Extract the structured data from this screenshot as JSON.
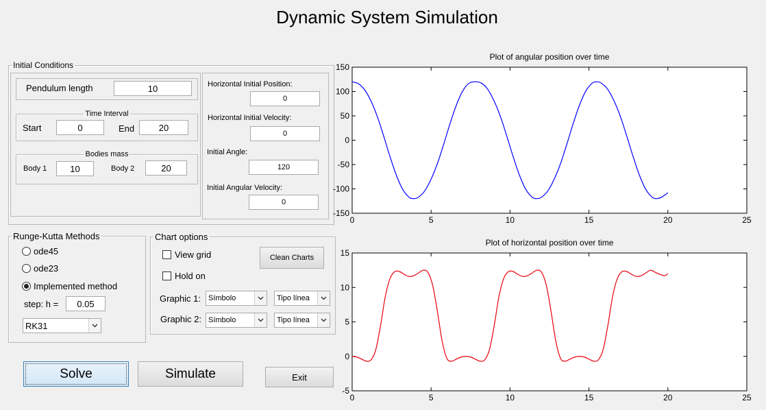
{
  "app_title": "Dynamic System Simulation",
  "initial_conditions": {
    "legend": "Initial Conditions",
    "pendulum_length_label": "Pendulum length",
    "pendulum_length": "10",
    "time_interval": {
      "legend": "Time Interval",
      "start_label": "Start",
      "start": "0",
      "end_label": "End",
      "end": "20"
    },
    "bodies_mass": {
      "legend": "Bodies mass",
      "body1_label": "Body 1",
      "body1": "10",
      "body2_label": "Body 2",
      "body2": "20"
    },
    "horiz_pos_label": "Horizontal Initial Position:",
    "horiz_pos": "0",
    "horiz_vel_label": "Horizontal Initial Velocity:",
    "horiz_vel": "0",
    "angle_label": "Initial Angle:",
    "angle": "120",
    "ang_vel_label": "Initial Angular Velocity:",
    "ang_vel": "0"
  },
  "runge_kutta": {
    "legend": "Runge-Kutta Methods",
    "options": [
      "ode45",
      "ode23",
      "Implemented method"
    ],
    "selected_index": 2,
    "step_label": "step: h =",
    "step": "0.05",
    "method_selected": "RK31"
  },
  "chart_options": {
    "legend": "Chart options",
    "view_grid_label": "View grid",
    "view_grid": false,
    "hold_on_label": "Hold on",
    "hold_on": false,
    "clean_label": "Clean Charts",
    "graphic1_label": "Graphic 1:",
    "graphic2_label": "Graphic 2:",
    "symbol_selected": "Símbolo",
    "line_type_selected": "Tipo línea"
  },
  "buttons": {
    "solve": "Solve",
    "simulate": "Simulate",
    "exit": "Exit"
  },
  "icons": {
    "dropdown_arrow": "chevron-down-icon"
  },
  "colors": {
    "series_angular": "#0000ff",
    "series_horizontal": "#e8000b"
  },
  "chart_data": [
    {
      "type": "line",
      "title": "Plot of angular position over time",
      "xlim": [
        0,
        25
      ],
      "ylim": [
        -150,
        150
      ],
      "xticks": [
        0,
        5,
        10,
        15,
        20,
        25
      ],
      "yticks": [
        150,
        100,
        50,
        0,
        -50,
        -100,
        -150
      ],
      "ytick_labels": [
        "150",
        "100",
        "50",
        "0",
        "-50",
        "-100",
        "-150"
      ],
      "grid": false,
      "series": [
        {
          "color": "#0000ff",
          "x": [
            0,
            0.4,
            0.8,
            1.2,
            1.6,
            2.0,
            2.4,
            2.8,
            3.2,
            3.6,
            3.9,
            4.2,
            4.6,
            5.0,
            5.4,
            5.8,
            6.2,
            6.6,
            7.0,
            7.4,
            7.8,
            8.2,
            8.6,
            9.0,
            9.4,
            9.8,
            10.2,
            10.6,
            11.0,
            11.4,
            11.7,
            12.0,
            12.4,
            12.8,
            13.2,
            13.6,
            14.0,
            14.4,
            14.8,
            15.2,
            15.5,
            15.8,
            16.2,
            16.6,
            17.0,
            17.4,
            17.8,
            18.2,
            18.6,
            19.0,
            19.3,
            19.6,
            20.0
          ],
          "y": [
            120,
            116,
            103,
            80,
            48,
            8,
            -34,
            -72,
            -101,
            -117,
            -120,
            -117,
            -104,
            -80,
            -48,
            -8,
            34,
            72,
            101,
            117,
            120,
            117,
            104,
            80,
            48,
            8,
            -34,
            -72,
            -101,
            -117,
            -120,
            -117,
            -104,
            -80,
            -48,
            -8,
            34,
            72,
            101,
            117,
            120,
            117,
            104,
            80,
            48,
            8,
            -34,
            -72,
            -101,
            -117,
            -120,
            -117,
            -108
          ]
        }
      ]
    },
    {
      "type": "line",
      "title": "Plot of horizontal position over time",
      "xlim": [
        0,
        25
      ],
      "ylim": [
        -5,
        15
      ],
      "xticks": [
        0,
        5,
        10,
        15,
        20,
        25
      ],
      "yticks": [
        15,
        10,
        5,
        0,
        -5
      ],
      "grid": false,
      "series": [
        {
          "color": "#e8000b",
          "x": [
            0,
            0.3,
            0.6,
            0.9,
            1.2,
            1.5,
            1.8,
            2.1,
            2.4,
            2.7,
            3.0,
            3.3,
            3.6,
            3.9,
            4.2,
            4.5,
            4.8,
            5.1,
            5.4,
            5.7,
            6.0,
            6.3,
            6.6,
            6.9,
            7.2,
            7.5,
            7.8,
            8.1,
            8.4,
            8.7,
            9.0,
            9.3,
            9.6,
            9.9,
            10.2,
            10.5,
            10.8,
            11.1,
            11.4,
            11.7,
            12.0,
            12.3,
            12.6,
            12.9,
            13.2,
            13.5,
            13.8,
            14.1,
            14.4,
            14.7,
            15.0,
            15.3,
            15.6,
            15.9,
            16.2,
            16.5,
            16.8,
            17.1,
            17.4,
            17.7,
            18.0,
            18.3,
            18.6,
            18.9,
            19.2,
            19.5,
            19.8,
            20.0
          ],
          "y": [
            0,
            -0.1,
            -0.4,
            -0.7,
            -0.5,
            1.0,
            4.5,
            8.7,
            11.3,
            12.3,
            12.3,
            11.9,
            11.6,
            11.7,
            12.1,
            12.5,
            12.2,
            10.3,
            6.5,
            2.2,
            -0.3,
            -0.7,
            -0.4,
            -0.1,
            0,
            -0.1,
            -0.4,
            -0.7,
            -0.5,
            1.0,
            4.5,
            8.7,
            11.3,
            12.3,
            12.3,
            11.9,
            11.6,
            11.7,
            12.1,
            12.5,
            12.2,
            10.3,
            6.5,
            2.2,
            -0.3,
            -0.7,
            -0.4,
            -0.1,
            0,
            -0.1,
            -0.4,
            -0.7,
            -0.5,
            1.0,
            4.5,
            8.7,
            11.3,
            12.3,
            12.3,
            11.9,
            11.6,
            11.7,
            12.1,
            12.5,
            12.2,
            11.9,
            11.7,
            12.0
          ]
        }
      ]
    }
  ]
}
